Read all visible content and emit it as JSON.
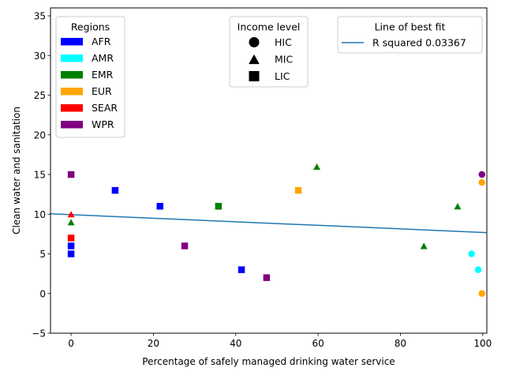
{
  "chart_data": {
    "type": "scatter",
    "xlabel": "Percentage of safely managed drinking water service",
    "ylabel": "Clean water and sanitation",
    "xlim": [
      -5,
      101
    ],
    "ylim": [
      -5,
      36
    ],
    "x_ticks": [
      0,
      20,
      40,
      60,
      80,
      100
    ],
    "y_ticks": [
      -5,
      0,
      5,
      10,
      15,
      20,
      25,
      30,
      35
    ],
    "grid": false,
    "region_colors": {
      "AFR": "#0000ff",
      "AMR": "#00ffff",
      "EMR": "#008000",
      "EUR": "#ffa500",
      "SEAR": "#ff0000",
      "WPR": "#800080"
    },
    "points": [
      {
        "x": 0,
        "y": 15,
        "region": "WPR",
        "income": "LIC"
      },
      {
        "x": 0,
        "y": 10,
        "region": "SEAR",
        "income": "MIC"
      },
      {
        "x": 0,
        "y": 9,
        "region": "EMR",
        "income": "MIC"
      },
      {
        "x": 0,
        "y": 7,
        "region": "SEAR",
        "income": "LIC"
      },
      {
        "x": 0,
        "y": 6,
        "region": "AFR",
        "income": "LIC"
      },
      {
        "x": 0,
        "y": 5,
        "region": "AFR",
        "income": "LIC"
      },
      {
        "x": 10.7,
        "y": 13,
        "region": "AFR",
        "income": "LIC"
      },
      {
        "x": 21.6,
        "y": 11,
        "region": "AFR",
        "income": "LIC"
      },
      {
        "x": 27.6,
        "y": 6,
        "region": "WPR",
        "income": "LIC"
      },
      {
        "x": 35.8,
        "y": 11,
        "region": "EMR",
        "income": "LIC"
      },
      {
        "x": 41.4,
        "y": 3,
        "region": "AFR",
        "income": "LIC"
      },
      {
        "x": 47.5,
        "y": 2,
        "region": "WPR",
        "income": "LIC"
      },
      {
        "x": 55.2,
        "y": 13,
        "region": "EUR",
        "income": "LIC"
      },
      {
        "x": 59.7,
        "y": 16,
        "region": "EMR",
        "income": "MIC"
      },
      {
        "x": 85.7,
        "y": 6,
        "region": "EMR",
        "income": "MIC"
      },
      {
        "x": 93.9,
        "y": 11,
        "region": "EMR",
        "income": "MIC"
      },
      {
        "x": 97.3,
        "y": 5,
        "region": "AMR",
        "income": "HIC"
      },
      {
        "x": 98.9,
        "y": 3,
        "region": "AMR",
        "income": "HIC"
      },
      {
        "x": 99.8,
        "y": 15,
        "region": "WPR",
        "income": "HIC"
      },
      {
        "x": 99.8,
        "y": 14,
        "region": "EUR",
        "income": "HIC"
      },
      {
        "x": 99.8,
        "y": 0,
        "region": "EUR",
        "income": "HIC"
      }
    ],
    "fit_line": {
      "color": "#1f77b4",
      "x": [
        -5,
        101
      ],
      "y": [
        10.05,
        7.68
      ]
    },
    "legends": {
      "regions": {
        "title": "Regions",
        "placement": "top-left",
        "items": [
          "AFR",
          "AMR",
          "EMR",
          "EUR",
          "SEAR",
          "WPR"
        ]
      },
      "income": {
        "title": "Income level",
        "placement": "top-center",
        "items": [
          {
            "label": "HIC",
            "marker": "circle"
          },
          {
            "label": "MIC",
            "marker": "triangle"
          },
          {
            "label": "LIC",
            "marker": "square"
          }
        ]
      },
      "fit": {
        "title": "Line of best fit",
        "placement": "top-right",
        "items": [
          "R squared 0.03367"
        ]
      }
    }
  }
}
